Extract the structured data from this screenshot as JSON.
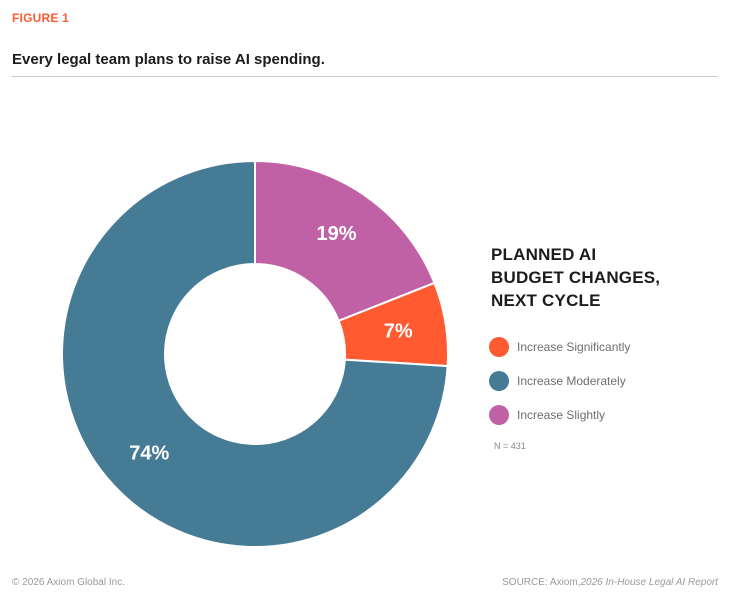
{
  "figure_label": "FIGURE 1",
  "title": "Every legal team plans to raise AI spending.",
  "legend_title_lines": [
    "PLANNED AI",
    "BUDGET CHANGES,",
    "NEXT CYCLE"
  ],
  "n_note": "N = 431",
  "footer_left": "© 2026 Axiom Global Inc.",
  "source_prefix": "SOURCE: Axiom,",
  "source_title": "2026 In-House Legal AI Report",
  "colors": {
    "accent": "#FF5A30",
    "significantly": "#FF5A30",
    "moderately": "#457B94",
    "slightly": "#C061A6",
    "title_rule": "#CCCCCC"
  },
  "chart_data": {
    "type": "pie",
    "donut": true,
    "categories": [
      "Increase Slightly",
      "Increase Significantly",
      "Increase Moderately"
    ],
    "values": [
      19,
      7,
      74
    ],
    "data_labels": [
      "19%",
      "7%",
      "74%"
    ],
    "colors": [
      "#C061A6",
      "#FF5A30",
      "#457B94"
    ],
    "legend_position": "right",
    "legend": [
      {
        "label": "Increase Significantly",
        "color": "#FF5A30"
      },
      {
        "label": "Increase Moderately",
        "color": "#457B94"
      },
      {
        "label": "Increase Slightly",
        "color": "#C061A6"
      }
    ]
  }
}
